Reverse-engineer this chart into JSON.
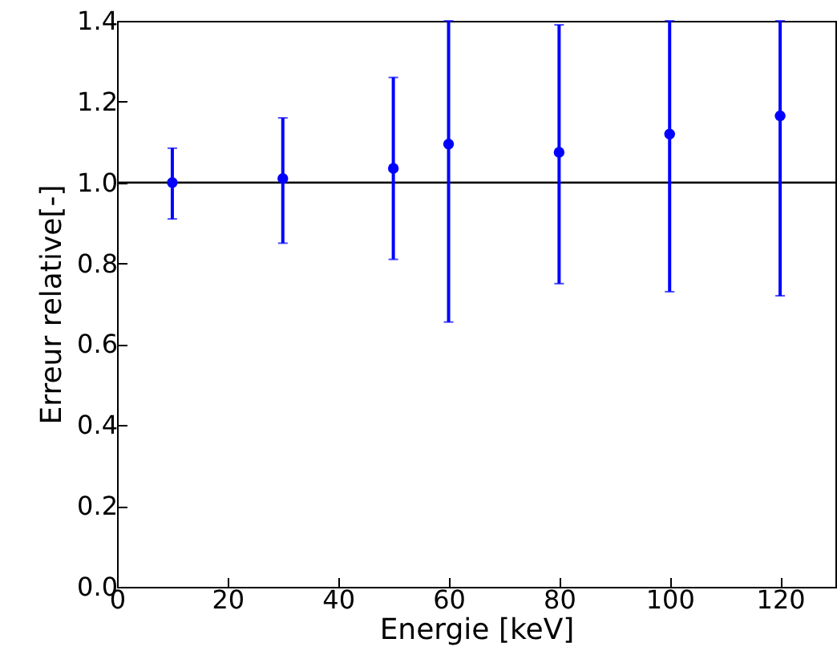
{
  "chart_data": {
    "type": "scatter",
    "xlabel": "Energie [keV]",
    "ylabel": "Erreur relative[-]",
    "x": [
      10,
      30,
      50,
      60,
      80,
      100,
      120
    ],
    "series": [
      {
        "color": "#0000ff",
        "values": [
          1.0,
          1.01,
          1.035,
          1.095,
          1.075,
          1.12,
          1.165
        ],
        "errors": [
          [
            0.91,
            1.085
          ],
          [
            0.85,
            1.16
          ],
          [
            0.81,
            1.26
          ],
          [
            0.655,
            1.4
          ],
          [
            0.75,
            1.39
          ],
          [
            0.73,
            1.4
          ],
          [
            0.72,
            1.4
          ]
        ]
      }
    ],
    "xlim": [
      0,
      130
    ],
    "xticks": [
      0,
      20,
      40,
      60,
      80,
      100,
      120
    ],
    "ylim": [
      0,
      1.4
    ],
    "yticks": [
      {
        "value": 0,
        "label": "0.0"
      },
      0.2,
      0.4,
      0.6,
      0.8,
      {
        "value": 1,
        "label": "1.0"
      },
      1.2,
      1.4
    ],
    "ref_lines": [
      {
        "axis": "y",
        "value": 1.0,
        "color": "#000000"
      }
    ],
    "grid": false,
    "marker": "circle"
  }
}
